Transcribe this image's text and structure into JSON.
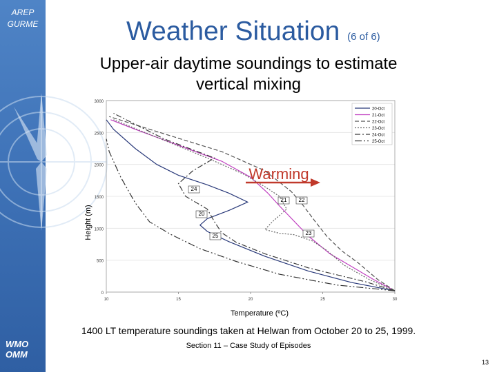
{
  "brand": {
    "line1": "AREP",
    "line2": "GURME",
    "org1": "WMO",
    "org2": "OMM"
  },
  "slide": {
    "title": "Weather Situation",
    "title_suffix": "(6 of 6)",
    "subtitle_line1": "Upper-air daytime soundings to estimate",
    "subtitle_line2": "vertical mixing",
    "caption": "1400 LT temperature soundings taken at Helwan from October 20 to 25, 1999.",
    "section": "Section 11 – Case Study of Episodes",
    "page_number": "13"
  },
  "colors": {
    "accent": "#2b5ba0",
    "sidebar": "#3f73b8",
    "warming": "#c0392b"
  },
  "chart_data": {
    "type": "line",
    "title": "",
    "xlabel": "Temperature (ºC)",
    "ylabel": "Height (m)",
    "xlim": [
      10,
      30
    ],
    "ylim": [
      0,
      3000
    ],
    "xticks": [
      "10",
      "15",
      "20",
      "25",
      "30"
    ],
    "yticks": [
      "0",
      "500",
      "1000",
      "1500",
      "2000",
      "2500",
      "3000"
    ],
    "annotation": "Warming",
    "series": [
      {
        "name": "20-Oct",
        "color": "#2a3a7a",
        "dash": "",
        "label": "20",
        "points": [
          [
            30,
            20
          ],
          [
            27,
            150
          ],
          [
            24,
            330
          ],
          [
            21,
            560
          ],
          [
            18.5,
            790
          ],
          [
            17,
            950
          ],
          [
            16.5,
            1050
          ],
          [
            17,
            1150
          ],
          [
            18.5,
            1280
          ],
          [
            19.8,
            1410
          ],
          [
            18.5,
            1550
          ],
          [
            17,
            1680
          ],
          [
            15,
            1830
          ],
          [
            13.5,
            2000
          ],
          [
            12,
            2250
          ],
          [
            10.5,
            2550
          ],
          [
            10,
            2700
          ]
        ]
      },
      {
        "name": "21-Oct",
        "color": "#c03fc0",
        "dash": "",
        "label": "21",
        "points": [
          [
            30,
            20
          ],
          [
            28.5,
            200
          ],
          [
            27,
            400
          ],
          [
            25.5,
            600
          ],
          [
            24,
            880
          ],
          [
            22,
            1350
          ],
          [
            21.2,
            1550
          ],
          [
            20,
            1800
          ],
          [
            18,
            2050
          ],
          [
            15,
            2300
          ],
          [
            12,
            2550
          ],
          [
            10.3,
            2700
          ]
        ]
      },
      {
        "name": "22-Oct",
        "color": "#555555",
        "dash": "6,3",
        "label": "22",
        "points": [
          [
            30,
            20
          ],
          [
            28.8,
            200
          ],
          [
            27.5,
            450
          ],
          [
            26.3,
            650
          ],
          [
            25.3,
            870
          ],
          [
            24.5,
            1100
          ],
          [
            23.5,
            1400
          ],
          [
            22.8,
            1580
          ],
          [
            21,
            1900
          ],
          [
            18,
            2200
          ],
          [
            14,
            2480
          ],
          [
            10.2,
            2750
          ]
        ]
      },
      {
        "name": "23-Oct",
        "color": "#666666",
        "dash": "2,2",
        "label": "23",
        "points": [
          [
            30,
            20
          ],
          [
            28.2,
            200
          ],
          [
            26.5,
            420
          ],
          [
            25.3,
            650
          ],
          [
            24.3,
            800
          ],
          [
            23,
            900
          ],
          [
            22,
            920
          ],
          [
            21,
            980
          ],
          [
            21.5,
            1100
          ],
          [
            22.5,
            1300
          ],
          [
            22,
            1500
          ],
          [
            21,
            1650
          ],
          [
            19.5,
            1850
          ],
          [
            17,
            2100
          ],
          [
            14,
            2380
          ],
          [
            10.5,
            2700
          ]
        ]
      },
      {
        "name": "24-Oct",
        "color": "#3a3a3a",
        "dash": "8,3,2,3",
        "label": "24",
        "points": [
          [
            30,
            20
          ],
          [
            28,
            160
          ],
          [
            24,
            380
          ],
          [
            21,
            600
          ],
          [
            19,
            780
          ],
          [
            18,
            930
          ],
          [
            17.5,
            1100
          ],
          [
            17,
            1300
          ],
          [
            15.5,
            1500
          ],
          [
            15,
            1700
          ],
          [
            16,
            1900
          ],
          [
            17.5,
            2100
          ],
          [
            14,
            2400
          ],
          [
            10.5,
            2800
          ]
        ]
      },
      {
        "name": "25-Oct",
        "color": "#333333",
        "dash": "10,3,2,3,2,3",
        "label": "25",
        "points": [
          [
            30,
            20
          ],
          [
            26,
            110
          ],
          [
            22,
            280
          ],
          [
            19,
            480
          ],
          [
            16.5,
            680
          ],
          [
            14.5,
            900
          ],
          [
            13,
            1100
          ],
          [
            12,
            1400
          ],
          [
            11,
            1800
          ],
          [
            10.2,
            2200
          ],
          [
            10,
            2400
          ]
        ]
      }
    ]
  }
}
